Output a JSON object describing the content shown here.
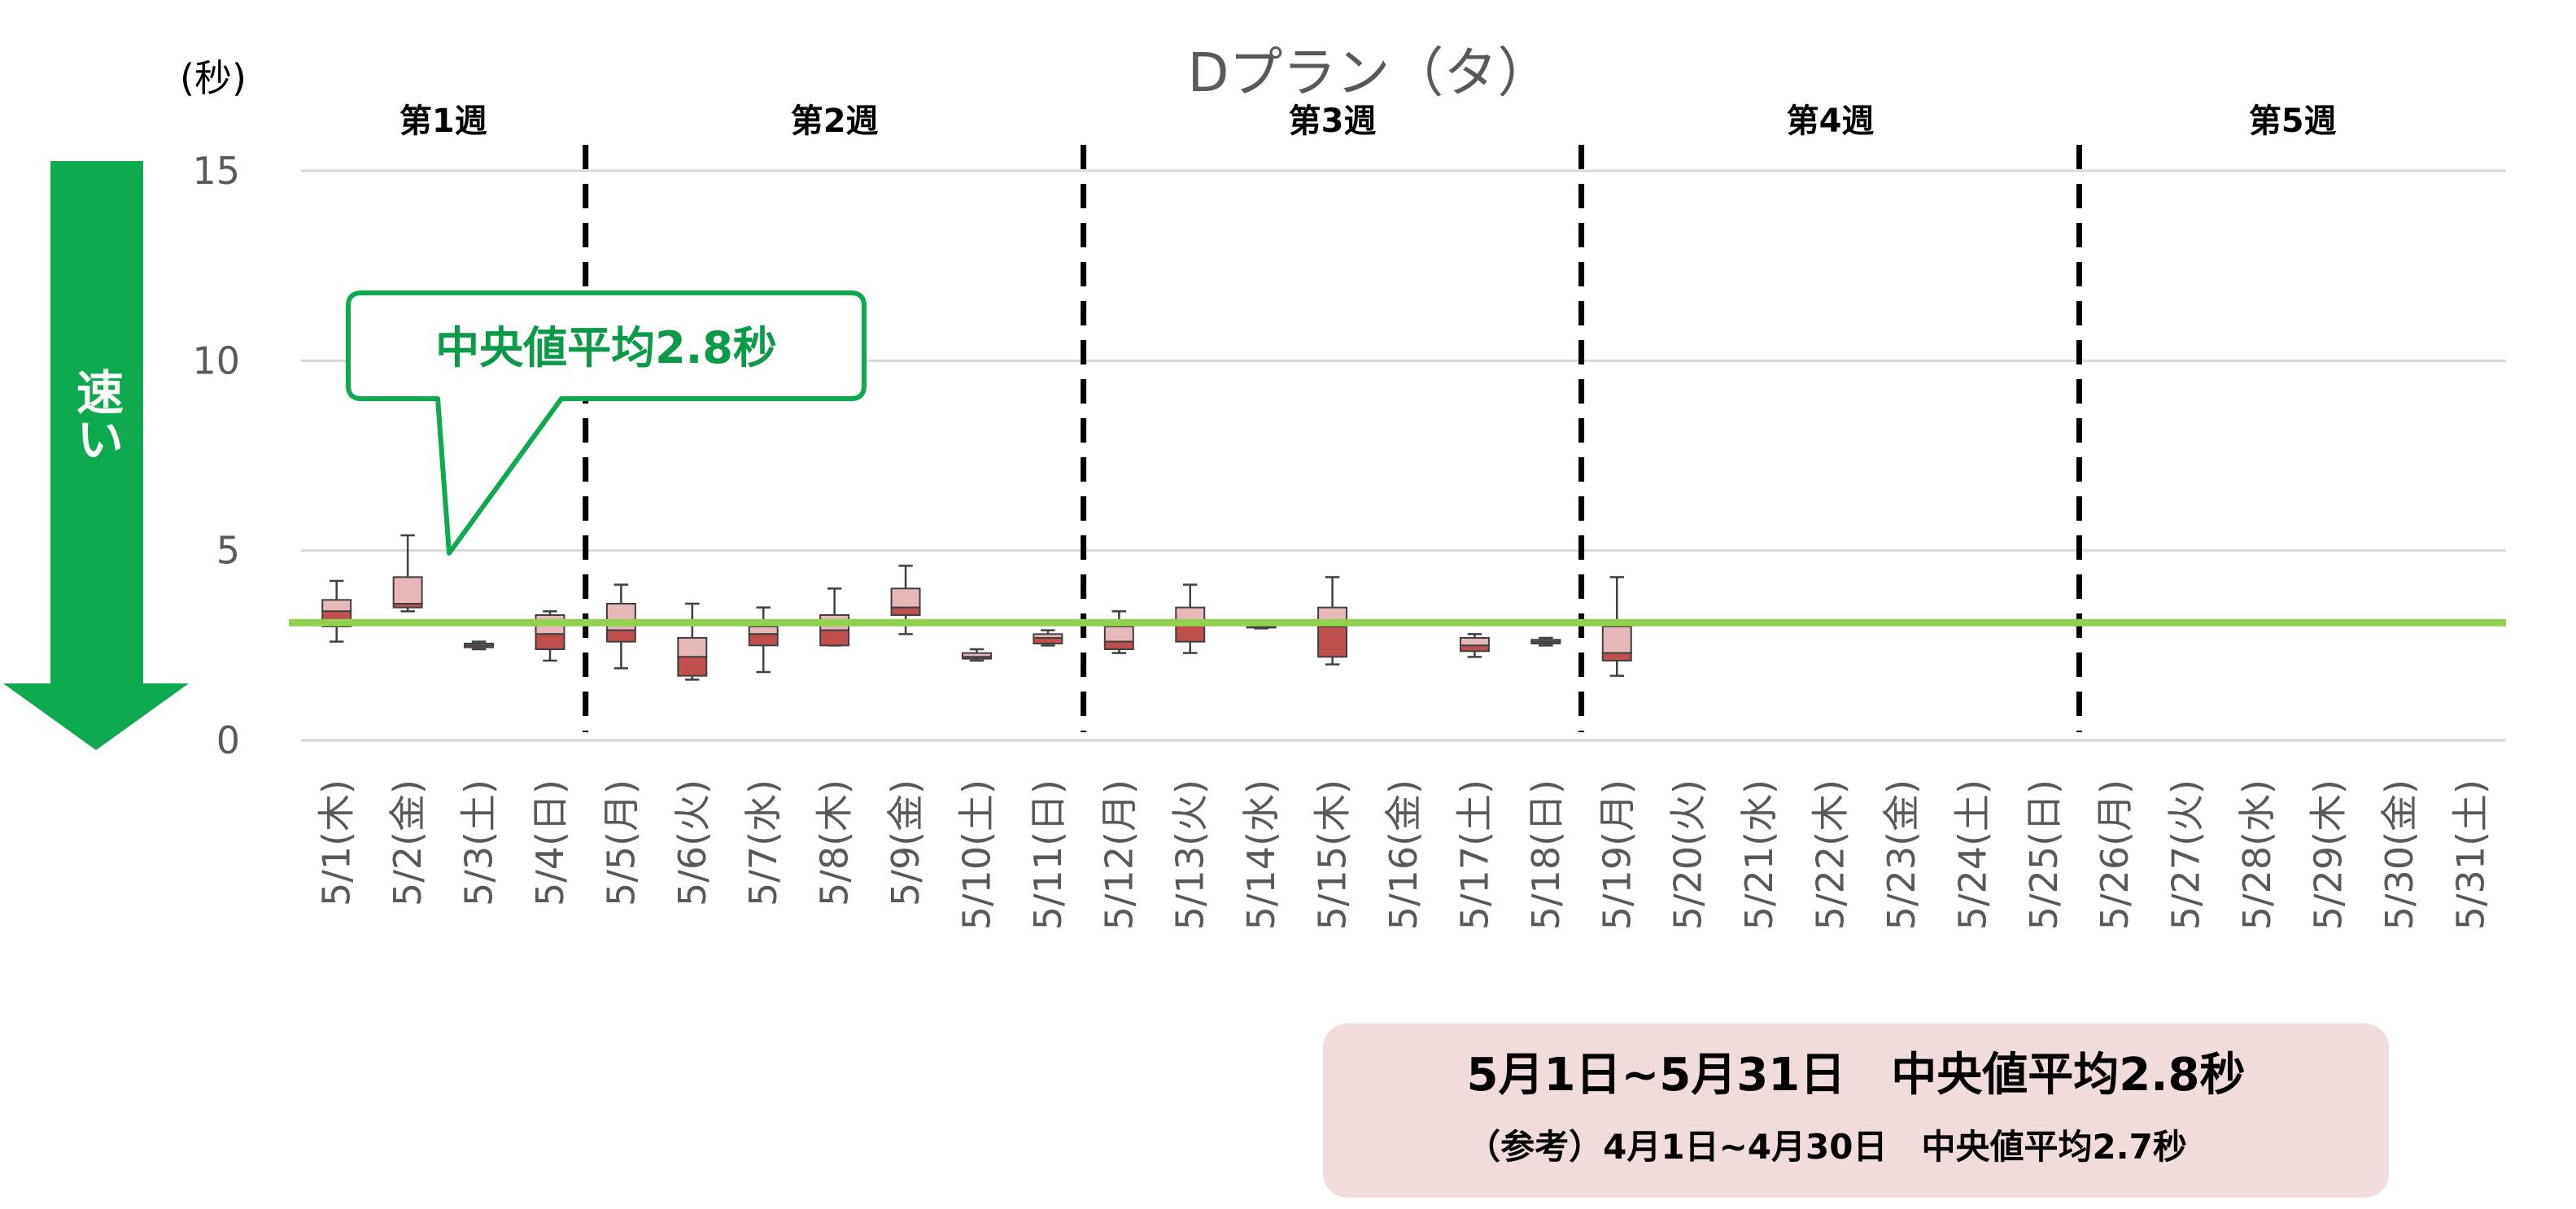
{
  "chart_data": {
    "type": "boxplot",
    "title": "Dプラン（タ）",
    "ylabel": "(秒)",
    "ylim": [
      0,
      15
    ],
    "yticks": [
      0,
      5,
      10,
      15
    ],
    "grid": true,
    "reference_line": {
      "value": 3.1,
      "color": "#92d050"
    },
    "categories": [
      "5/1(木)",
      "5/2(金)",
      "5/3(土)",
      "5/4(日)",
      "5/5(月)",
      "5/6(火)",
      "5/7(水)",
      "5/8(木)",
      "5/9(金)",
      "5/10(土)",
      "5/11(日)",
      "5/12(月)",
      "5/13(火)",
      "5/14(水)",
      "5/15(木)",
      "5/16(金)",
      "5/17(土)",
      "5/18(日)",
      "5/19(月)",
      "5/20(火)",
      "5/21(水)",
      "5/22(木)",
      "5/23(金)",
      "5/24(土)",
      "5/25(日)",
      "5/26(月)",
      "5/27(火)",
      "5/28(水)",
      "5/29(木)",
      "5/30(金)",
      "5/31(土)"
    ],
    "boxes": [
      {
        "min": 2.6,
        "q1": 3.0,
        "median": 3.4,
        "q3": 3.7,
        "max": 4.2
      },
      {
        "min": 3.4,
        "q1": 3.5,
        "median": 3.6,
        "q3": 4.3,
        "max": 5.4
      },
      {
        "min": 2.4,
        "q1": 2.45,
        "median": 2.5,
        "q3": 2.55,
        "max": 2.6
      },
      {
        "min": 2.1,
        "q1": 2.4,
        "median": 2.8,
        "q3": 3.3,
        "max": 3.4
      },
      {
        "min": 1.9,
        "q1": 2.6,
        "median": 2.9,
        "q3": 3.6,
        "max": 4.1
      },
      {
        "min": 1.6,
        "q1": 1.7,
        "median": 2.2,
        "q3": 2.7,
        "max": 3.6
      },
      {
        "min": 1.8,
        "q1": 2.5,
        "median": 2.8,
        "q3": 3.0,
        "max": 3.5
      },
      {
        "min": 2.5,
        "q1": 2.5,
        "median": 2.9,
        "q3": 3.3,
        "max": 4.0
      },
      {
        "min": 2.8,
        "q1": 3.3,
        "median": 3.5,
        "q3": 4.0,
        "max": 4.6
      },
      {
        "min": 2.1,
        "q1": 2.15,
        "median": 2.2,
        "q3": 2.3,
        "max": 2.4
      },
      {
        "min": 2.5,
        "q1": 2.55,
        "median": 2.7,
        "q3": 2.8,
        "max": 2.9
      },
      {
        "min": 2.3,
        "q1": 2.4,
        "median": 2.6,
        "q3": 3.0,
        "max": 3.4
      },
      {
        "min": 2.3,
        "q1": 2.6,
        "median": 3.1,
        "q3": 3.5,
        "max": 4.1
      },
      {
        "min": 2.95,
        "q1": 2.97,
        "median": 3.0,
        "q3": 3.02,
        "max": 3.05
      },
      {
        "min": 2.0,
        "q1": 2.2,
        "median": 3.0,
        "q3": 3.5,
        "max": 4.3
      },
      null,
      {
        "min": 2.2,
        "q1": 2.35,
        "median": 2.5,
        "q3": 2.7,
        "max": 2.8
      },
      {
        "min": 2.5,
        "q1": 2.55,
        "median": 2.6,
        "q3": 2.65,
        "max": 2.7
      },
      {
        "min": 1.7,
        "q1": 2.1,
        "median": 2.3,
        "q3": 3.0,
        "max": 4.3
      },
      null,
      null,
      null,
      null,
      null,
      null,
      null,
      null,
      null,
      null,
      null,
      null
    ],
    "weeks": [
      {
        "label": "第1週",
        "start": 0,
        "end": 3
      },
      {
        "label": "第2週",
        "start": 4,
        "end": 10
      },
      {
        "label": "第3週",
        "start": 11,
        "end": 17
      },
      {
        "label": "第4週",
        "start": 18,
        "end": 24
      },
      {
        "label": "第5週",
        "start": 25,
        "end": 30
      }
    ]
  },
  "callout": {
    "text": "中央値平均2.8秒"
  },
  "arrow": {
    "text": "速い",
    "color": "#0eaa4f"
  },
  "summary": {
    "line1": "5月1日~5月31日　中央値平均2.8秒",
    "line2": "（参考）4月1日~4月30日　中央値平均2.7秒"
  },
  "colors": {
    "box_upper": "#e6b8b7",
    "box_lower": "#c0504d",
    "accent_green": "#0eaa4f",
    "summary_bg": "#f2dcdb"
  }
}
